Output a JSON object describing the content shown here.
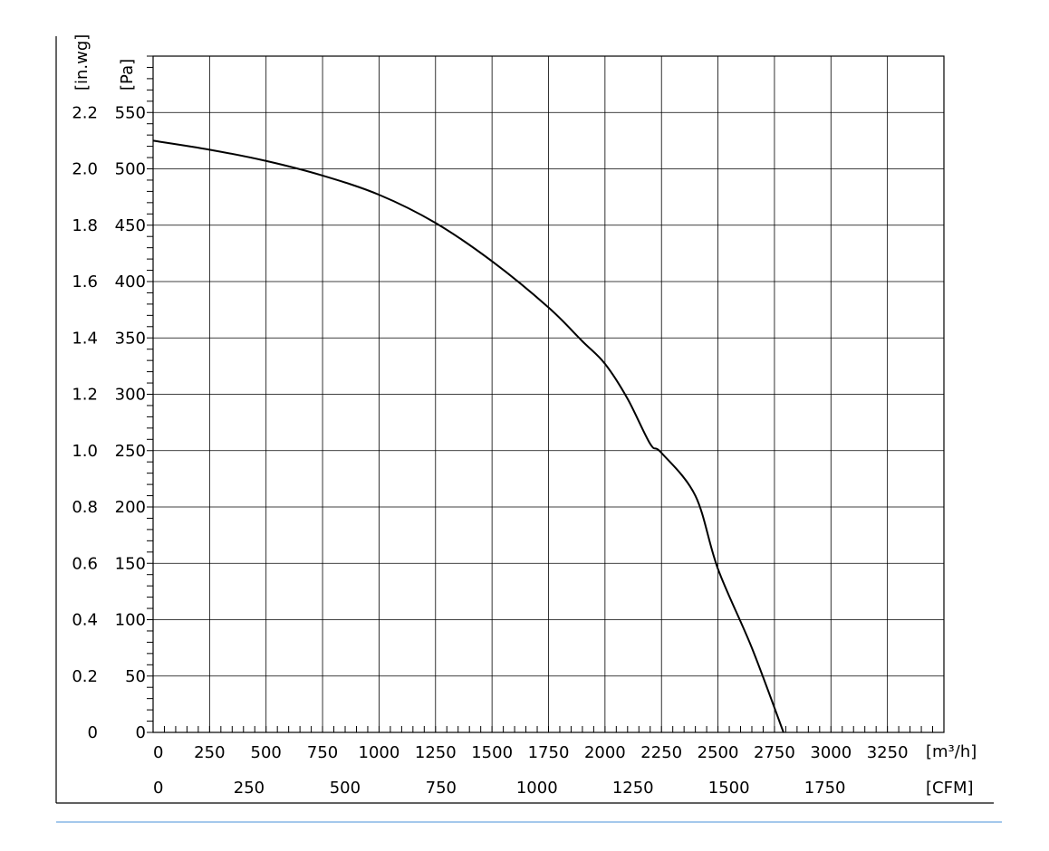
{
  "chart_data": {
    "type": "line",
    "title": "",
    "x_units": {
      "primary": "[m³/h]",
      "secondary": "[CFM]"
    },
    "y_units": {
      "primary": "[Pa]",
      "secondary": "[in.wg]"
    },
    "xlim": [
      0,
      3500
    ],
    "ylim": [
      0,
      600
    ],
    "x_ticks_m3h": [
      "0",
      "250",
      "500",
      "750",
      "1000",
      "1250",
      "1500",
      "1750",
      "2000",
      "2250",
      "2500",
      "2750",
      "3000",
      "3250"
    ],
    "x_ticks_cfm": [
      "0",
      "250",
      "500",
      "750",
      "1000",
      "1250",
      "1500",
      "1750"
    ],
    "y_ticks_pa": [
      "0",
      "50",
      "100",
      "150",
      "200",
      "250",
      "300",
      "350",
      "400",
      "450",
      "500",
      "550"
    ],
    "y_ticks_inwg": [
      "0",
      "0.2",
      "0.4",
      "0.6",
      "0.8",
      "1.0",
      "1.2",
      "1.4",
      "1.6",
      "1.8",
      "2.0",
      "2.2"
    ],
    "grid": true,
    "series": [
      {
        "x": [
          0,
          250,
          500,
          750,
          1000,
          1250,
          1500,
          1750,
          1900,
          2000,
          2100,
          2200,
          2250,
          2400,
          2500,
          2650,
          2790
        ],
        "y": [
          525,
          517,
          507,
          494,
          477,
          452,
          418,
          377,
          347,
          327,
          296,
          256,
          248,
          210,
          145,
          75,
          0
        ]
      }
    ]
  }
}
